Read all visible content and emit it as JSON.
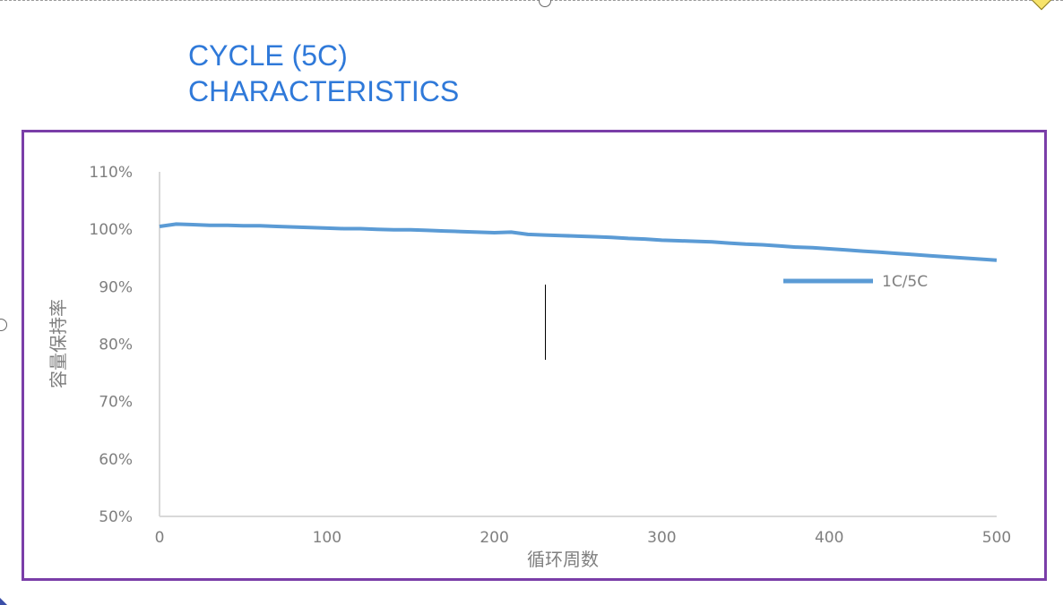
{
  "title": {
    "line1": "CYCLE (5C)",
    "line2": "CHARACTERISTICS"
  },
  "colors": {
    "title": "#2f79d9",
    "frame": "#7a3ea8",
    "series": "#5b9bd5",
    "axis": "#d9d9d9",
    "text": "#7f7f7f"
  },
  "chart_data": {
    "type": "line",
    "title": "",
    "xlabel": "循环周数",
    "ylabel": "容量保持率",
    "xlim": [
      0,
      500
    ],
    "ylim": [
      50,
      110
    ],
    "x_ticks": [
      "0",
      "100",
      "200",
      "300",
      "400",
      "500"
    ],
    "y_ticks": [
      "110%",
      "100%",
      "90%",
      "80%",
      "70%",
      "60%",
      "50%"
    ],
    "grid": false,
    "legend": "right",
    "series": [
      {
        "name": "1C/5C",
        "x": [
          0,
          10,
          20,
          30,
          40,
          50,
          60,
          70,
          80,
          90,
          100,
          110,
          120,
          130,
          140,
          150,
          160,
          170,
          180,
          190,
          200,
          210,
          220,
          230,
          240,
          250,
          260,
          270,
          280,
          290,
          300,
          310,
          320,
          330,
          340,
          350,
          360,
          370,
          380,
          390,
          400,
          410,
          420,
          430,
          440,
          450,
          460,
          470,
          480,
          490,
          500
        ],
        "y": [
          100.5,
          100.9,
          100.8,
          100.7,
          100.7,
          100.6,
          100.6,
          100.5,
          100.4,
          100.3,
          100.2,
          100.1,
          100.1,
          100.0,
          99.9,
          99.9,
          99.8,
          99.7,
          99.6,
          99.5,
          99.4,
          99.5,
          99.1,
          99.0,
          98.9,
          98.8,
          98.7,
          98.6,
          98.4,
          98.3,
          98.1,
          98.0,
          97.9,
          97.8,
          97.6,
          97.4,
          97.3,
          97.1,
          96.9,
          96.8,
          96.6,
          96.4,
          96.2,
          96.0,
          95.8,
          95.6,
          95.4,
          95.2,
          95.0,
          94.8,
          94.6
        ]
      }
    ]
  }
}
